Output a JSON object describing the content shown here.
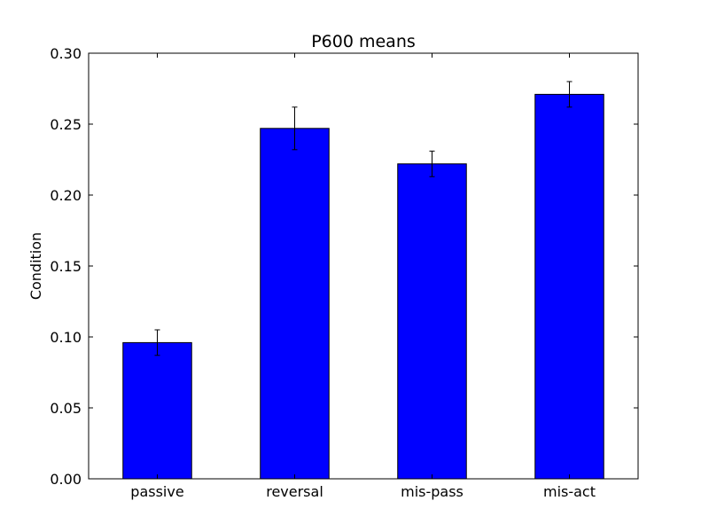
{
  "chart_data": {
    "type": "bar",
    "title": "P600 means",
    "xlabel": "",
    "ylabel": "Condition",
    "categories": [
      "passive",
      "reversal",
      "mis-pass",
      "mis-act"
    ],
    "values": [
      0.096,
      0.247,
      0.222,
      0.271
    ],
    "errors": [
      0.009,
      0.015,
      0.009,
      0.009
    ],
    "ylim": [
      0.0,
      0.3
    ],
    "yticks": [
      0.0,
      0.05,
      0.1,
      0.15,
      0.2,
      0.25,
      0.3
    ],
    "ytick_labels": [
      "0.00",
      "0.05",
      "0.10",
      "0.15",
      "0.20",
      "0.25",
      "0.30"
    ],
    "grid": false,
    "colors": {
      "bar": "#0000ff",
      "edge": "#000000",
      "error": "#000000"
    }
  }
}
